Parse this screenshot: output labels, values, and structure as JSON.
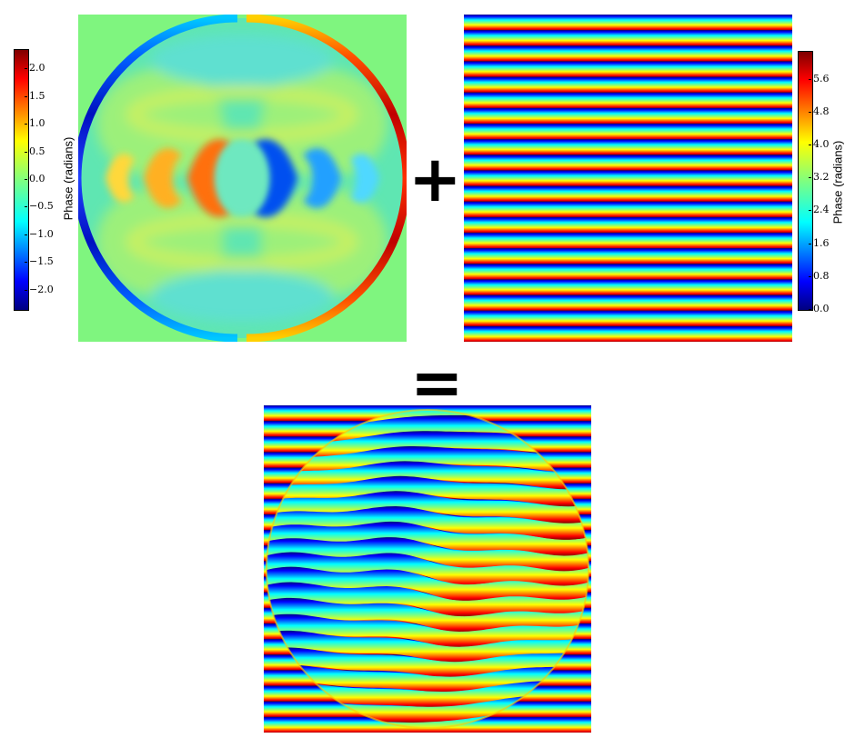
{
  "operators": {
    "plus": "+",
    "equals": "="
  },
  "left_colorbar": {
    "label": "Phase (radians)",
    "ticks": [
      "2.0",
      "1.5",
      "1.0",
      "0.5",
      "0.0",
      "−0.5",
      "−1.0",
      "−1.5",
      "−2.0"
    ],
    "tick_values": [
      2.0,
      1.5,
      1.0,
      0.5,
      0.0,
      -0.5,
      -1.0,
      -1.5,
      -2.0
    ],
    "range": [
      -2.35,
      2.35
    ]
  },
  "right_colorbar": {
    "label": "Phase (radians)",
    "ticks": [
      "5.6",
      "4.8",
      "4.0",
      "3.2",
      "2.4",
      "1.6",
      "0.8",
      "0.0"
    ],
    "tick_values": [
      5.6,
      4.8,
      4.0,
      3.2,
      2.4,
      1.6,
      0.8,
      0.0
    ],
    "range": [
      0.0,
      6.28
    ]
  },
  "colors": {
    "background_field": "#7ff57f",
    "colormap": "jet"
  },
  "panels": {
    "aberration": {
      "name": "aberration-phase-map"
    },
    "grating": {
      "name": "linear-grating-phase-map",
      "stripes": 21
    },
    "result": {
      "name": "combined-hologram-phase-map",
      "stripes": 21
    }
  }
}
